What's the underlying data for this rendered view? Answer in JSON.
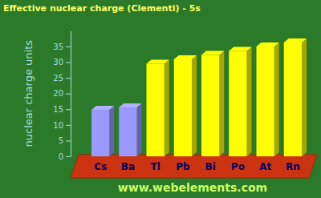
{
  "chart_data": {
    "type": "bar",
    "title": "Effective nuclear charge (Clementi) - 5s",
    "y_label": "nuclear charge units",
    "annotations": [
      "www.webelements.com"
    ],
    "categories": [
      "Cs",
      "Ba",
      "Tl",
      "Pb",
      "Bi",
      "Po",
      "At",
      "Rn"
    ],
    "values": [
      14.8,
      15.6,
      29.5,
      30.9,
      32.3,
      33.6,
      35.0,
      36.3
    ],
    "colors": [
      "#9999ff",
      "#9999ff",
      "#ffff00",
      "#ffff00",
      "#ffff00",
      "#ffff00",
      "#ffff00",
      "#ffff00"
    ],
    "ylim": [
      0,
      40
    ],
    "yticks": [
      0,
      5,
      10,
      15,
      20,
      25,
      30,
      35
    ],
    "grid": false
  }
}
